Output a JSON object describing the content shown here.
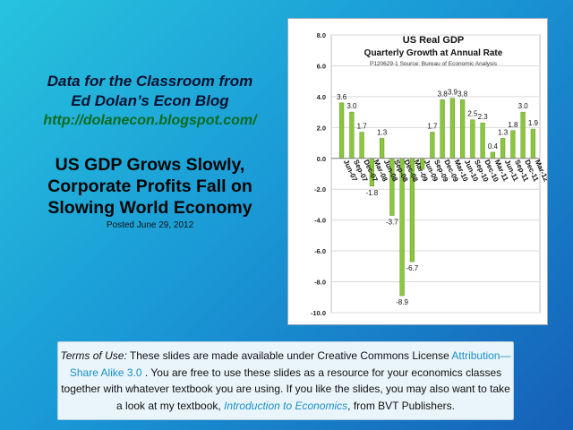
{
  "left": {
    "blog_title_line1": "Data for the Classroom from",
    "blog_title_line2": "Ed Dolan’s Econ Blog",
    "blog_url": "http://dolanecon.blogspot.com/",
    "headline_line1": "US GDP Grows Slowly,",
    "headline_line2": "Corporate Profits Fall on",
    "headline_line3": "Slowing World Economy",
    "posted": "Posted  June 29, 2012"
  },
  "terms": {
    "label": "Terms of Use:",
    "text1": " These slides are made available under Creative Commons License",
    "license_link": "Attribution—Share Alike 3.0",
    "text2": " . You are free to use these slides as a resource for your economics classes together with whatever textbook you are using. If you like the slides, you may also want to take a look at my textbook, ",
    "book_title": "Introduction to Economics",
    "text3": ", from BVT Publishers."
  },
  "colors": {
    "bar": "#8cc63f",
    "bar_edge": "#5e9a22",
    "grid": "#d9d9d9",
    "text_url": "#0b6b1f",
    "link": "#1a8fc8"
  },
  "chart_data": {
    "type": "bar",
    "title": "US  Real GDP",
    "subtitle": "Quarterly Growth at Annual Rate",
    "source": "P120629-1 Source: Bureau of Economic Analysis",
    "ylim": [
      -10,
      8
    ],
    "yticks": [
      "8.0",
      "6.0",
      "4.0",
      "2.0",
      "0.0",
      "-2.0",
      "-4.0",
      "-6.0",
      "-8.0",
      "-10.0"
    ],
    "grid": true,
    "categories": [
      "Jun-07",
      "Sep-07",
      "Dec-07",
      "Mar-08",
      "Jun-08",
      "Sep-08",
      "Dec-08",
      "Mar-09",
      "Jun-09",
      "Sep-09",
      "Dec-09",
      "Mar-10",
      "Jun-10",
      "Sep-10",
      "Dec-10",
      "Mar-11",
      "Jun-11",
      "Sep-11",
      "Dec-11",
      "Mar-12"
    ],
    "values": [
      3.6,
      3.0,
      1.7,
      -1.8,
      1.3,
      -3.7,
      -8.9,
      -6.7,
      -0.7,
      1.7,
      3.8,
      3.9,
      3.8,
      2.5,
      2.3,
      0.4,
      1.3,
      1.8,
      3.0,
      1.9
    ],
    "labels": [
      "3.6",
      "3.0",
      "1.7",
      "-1.8",
      "1.3",
      "-3.7",
      "-8.9",
      "-6.7",
      "",
      "1.7",
      "3.8",
      "3.9",
      "3.8",
      "2.5",
      "2.3",
      "0.4",
      "1.3",
      "1.8",
      "3.0",
      "1.9"
    ]
  }
}
